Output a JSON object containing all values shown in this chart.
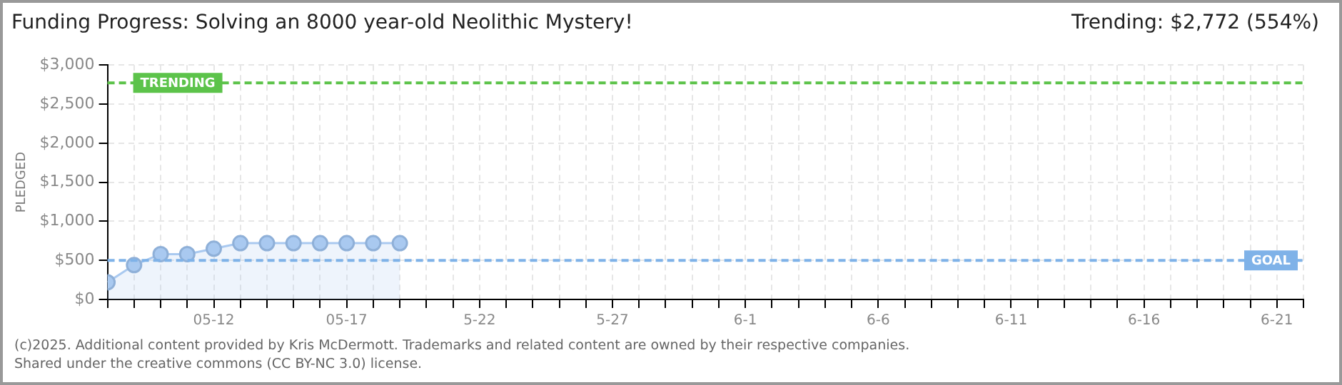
{
  "chart_data": {
    "type": "area",
    "title": "Funding Progress: Solving an 8000 year-old Neolithic Mystery!",
    "subtitle": "Trending: $2,772 (554%)",
    "ylabel": "PLEDGED",
    "x": [
      "2025-05-08",
      "2025-05-09",
      "2025-05-10",
      "2025-05-11",
      "2025-05-12",
      "2025-05-13",
      "2025-05-14",
      "2025-05-15",
      "2025-05-16",
      "2025-05-17",
      "2025-05-18",
      "2025-05-19"
    ],
    "series": [
      {
        "color": "#a9c9f0",
        "values": [
          220,
          440,
          580,
          580,
          650,
          720,
          720,
          720,
          720,
          720,
          720,
          720
        ]
      }
    ],
    "xlim": [
      "2025-05-08",
      "2025-06-22"
    ],
    "xticks": [
      {
        "value": "2025-05-08",
        "label": null
      },
      {
        "value": "2025-05-09",
        "label": null
      },
      {
        "value": "2025-05-10",
        "label": null
      },
      {
        "value": "2025-05-11",
        "label": null
      },
      {
        "value": "2025-05-12",
        "label": "05-12"
      },
      {
        "value": "2025-05-13",
        "label": null
      },
      {
        "value": "2025-05-14",
        "label": null
      },
      {
        "value": "2025-05-15",
        "label": null
      },
      {
        "value": "2025-05-16",
        "label": null
      },
      {
        "value": "2025-05-17",
        "label": "05-17"
      },
      {
        "value": "2025-05-18",
        "label": null
      },
      {
        "value": "2025-05-19",
        "label": null
      },
      {
        "value": "2025-05-20",
        "label": null
      },
      {
        "value": "2025-05-21",
        "label": null
      },
      {
        "value": "2025-05-22",
        "label": "5-22"
      },
      {
        "value": "2025-05-23",
        "label": null
      },
      {
        "value": "2025-05-24",
        "label": null
      },
      {
        "value": "2025-05-25",
        "label": null
      },
      {
        "value": "2025-05-26",
        "label": null
      },
      {
        "value": "2025-05-27",
        "label": "5-27"
      },
      {
        "value": "2025-05-28",
        "label": null
      },
      {
        "value": "2025-05-29",
        "label": null
      },
      {
        "value": "2025-05-30",
        "label": null
      },
      {
        "value": "2025-05-31",
        "label": null
      },
      {
        "value": "2025-06-01",
        "label": "6-1"
      },
      {
        "value": "2025-06-02",
        "label": null
      },
      {
        "value": "2025-06-03",
        "label": null
      },
      {
        "value": "2025-06-04",
        "label": null
      },
      {
        "value": "2025-06-05",
        "label": null
      },
      {
        "value": "2025-06-06",
        "label": "6-6"
      },
      {
        "value": "2025-06-07",
        "label": null
      },
      {
        "value": "2025-06-08",
        "label": null
      },
      {
        "value": "2025-06-09",
        "label": null
      },
      {
        "value": "2025-06-10",
        "label": null
      },
      {
        "value": "2025-06-11",
        "label": "6-11"
      },
      {
        "value": "2025-06-12",
        "label": null
      },
      {
        "value": "2025-06-13",
        "label": null
      },
      {
        "value": "2025-06-14",
        "label": null
      },
      {
        "value": "2025-06-15",
        "label": null
      },
      {
        "value": "2025-06-16",
        "label": "6-16"
      },
      {
        "value": "2025-06-17",
        "label": null
      },
      {
        "value": "2025-06-18",
        "label": null
      },
      {
        "value": "2025-06-19",
        "label": null
      },
      {
        "value": "2025-06-20",
        "label": null
      },
      {
        "value": "2025-06-21",
        "label": "6-21"
      },
      {
        "value": "2025-06-22",
        "label": null
      }
    ],
    "ylim": [
      0,
      3000
    ],
    "yticks": [
      {
        "value": 0,
        "label": "$0"
      },
      {
        "value": 500,
        "label": "$500"
      },
      {
        "value": 1000,
        "label": "$1,000"
      },
      {
        "value": 1500,
        "label": "$1,500"
      },
      {
        "value": 2000,
        "label": "$2,000"
      },
      {
        "value": 2500,
        "label": "$2,500"
      },
      {
        "value": 3000,
        "label": "$3,000"
      }
    ],
    "ref_lines": [
      {
        "axis": "y",
        "value": 2772,
        "label": "TRENDING",
        "color": "#5cc34a",
        "line_style": "dashed"
      },
      {
        "axis": "y",
        "value": 500,
        "label": "GOAL",
        "color": "#7fb2e8",
        "line_style": "dashed"
      }
    ],
    "grid": true,
    "legend": false,
    "marker": "circle",
    "line_style": "solid",
    "annotations": [
      "(c)2025. Additional content provided by Kris McDermott. Trademarks and related content are owned by their respective companies.",
      "Shared under the creative commons (CC BY-NC 3.0) license."
    ]
  }
}
